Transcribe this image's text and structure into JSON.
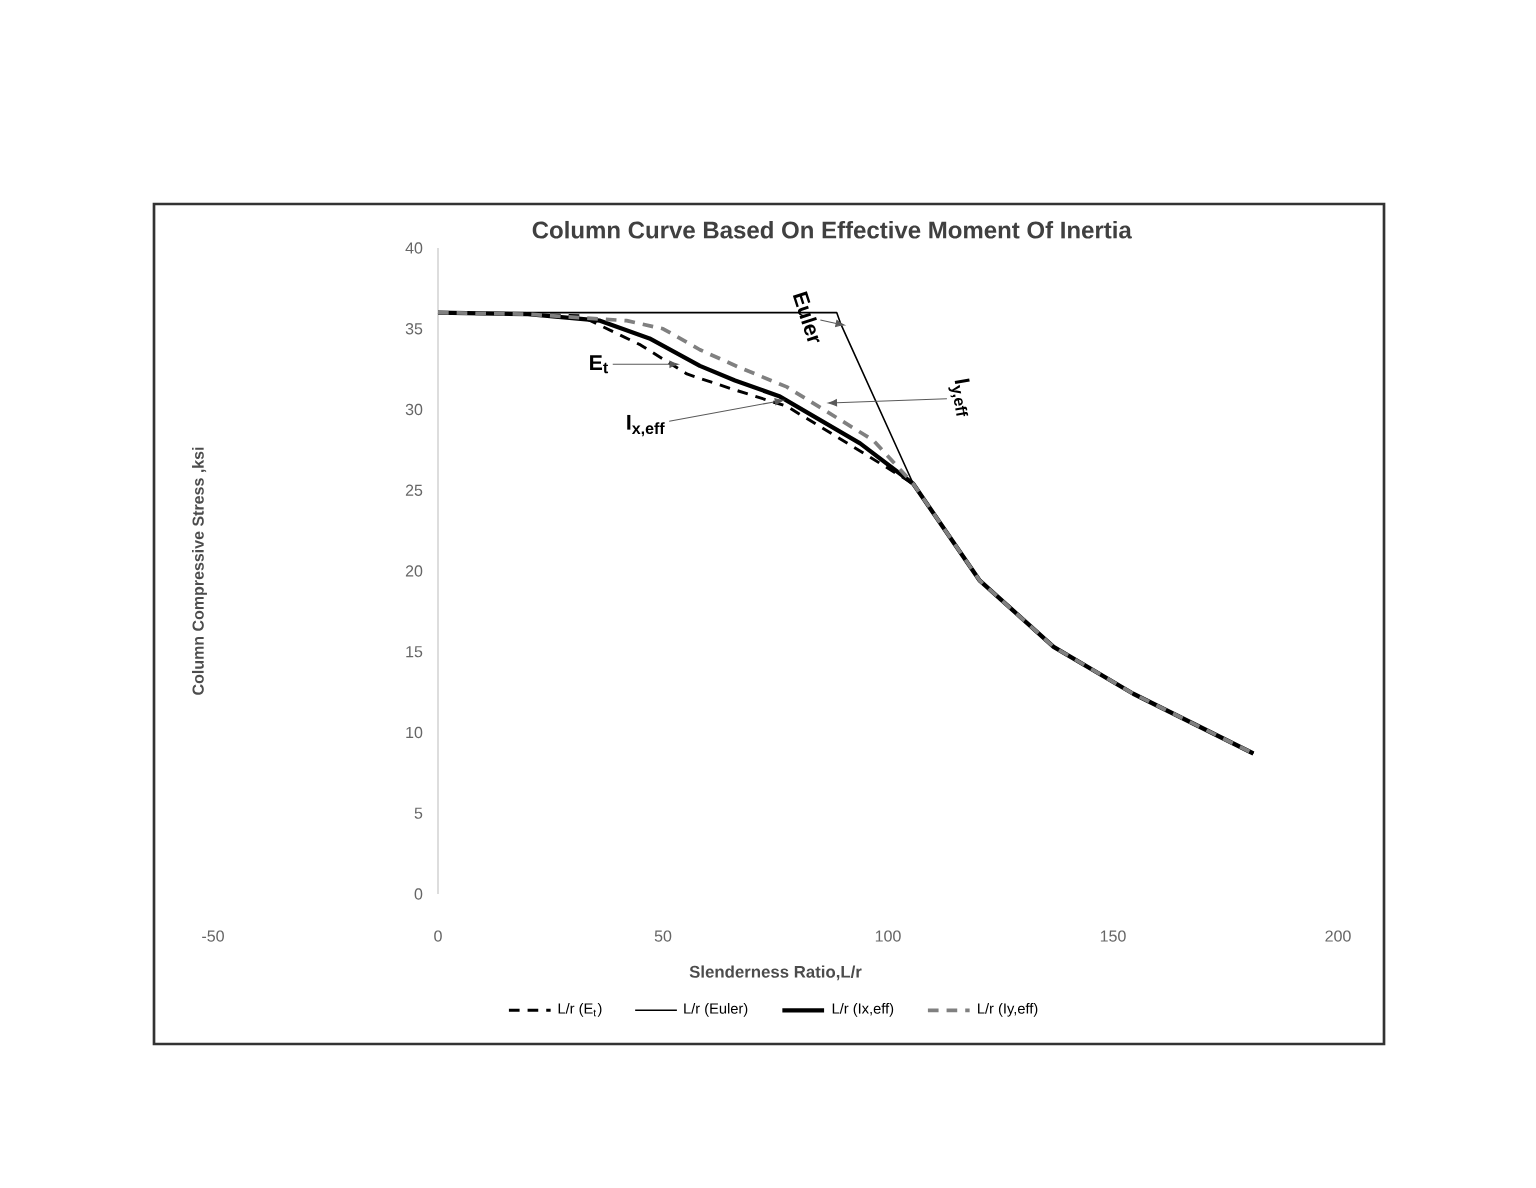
{
  "chart_data": {
    "type": "line",
    "title": "Column Curve Based On Effective Moment Of Inertia",
    "xlabel": "Slenderness Ratio,L/r",
    "ylabel": "Column Compressive Stress ,ksi",
    "xlim": [
      -50,
      200
    ],
    "xticks": [
      -50,
      0,
      50,
      100,
      150,
      200
    ],
    "ylim": [
      0,
      40
    ],
    "yticks": [
      0,
      5,
      10,
      15,
      20,
      25,
      30,
      35,
      40
    ],
    "grid": false,
    "legend": "bottom",
    "marker": "none",
    "series": [
      {
        "name": "L/r (E$_{t}$)",
        "color": "#000000",
        "line_style": "dashed",
        "x": [
          0,
          20,
          31.6,
          45,
          55.3,
          65,
          77.5,
          92.2,
          105.6,
          120.4,
          136.8,
          154.5,
          181.2
        ],
        "values": [
          36,
          35.9,
          35.8,
          34,
          32.2,
          31.3,
          30.2,
          27.7,
          25.4,
          19.4,
          15.3,
          12.4,
          8.7
        ]
      },
      {
        "name": "L/r (Euler)",
        "color": "#000000",
        "line_style": "solid",
        "x": [
          0,
          88.6,
          89.5,
          105.6
        ],
        "values": [
          36,
          36,
          35.3,
          25.4
        ]
      },
      {
        "name": "L/r (Ix,eff)",
        "color": "#000000",
        "line_style": "solid",
        "x": [
          0,
          20,
          36,
          47,
          58.2,
          66,
          76,
          93.8,
          105.6,
          120.4,
          136.8,
          154.5,
          181.2
        ],
        "values": [
          36,
          35.9,
          35.5,
          34.4,
          32.7,
          31.8,
          30.8,
          27.9,
          25.4,
          19.4,
          15.3,
          12.4,
          8.7
        ]
      },
      {
        "name": "L/r (Iy,eff)",
        "color": "#808080",
        "line_style": "dashed",
        "x": [
          0,
          20,
          41.9,
          50,
          58.2,
          67,
          77.5,
          96.7,
          105.6,
          120.4,
          136.8,
          154.5,
          181.2
        ],
        "values": [
          36,
          35.9,
          35.5,
          35,
          33.7,
          32.6,
          31.4,
          28.1,
          25.4,
          19.4,
          15.3,
          12.4,
          8.7
        ]
      }
    ],
    "annotations": [
      {
        "text": "Euler",
        "x": 90.7,
        "y": 35.2
      },
      {
        "text": "E$_{t}$",
        "x": 53.8,
        "y": 32.8
      },
      {
        "text": "I$_{x,eff}$",
        "x": 77.2,
        "y": 30.6
      },
      {
        "text": "I$_{y,eff}$",
        "x": 86.3,
        "y": 30.4
      }
    ]
  }
}
